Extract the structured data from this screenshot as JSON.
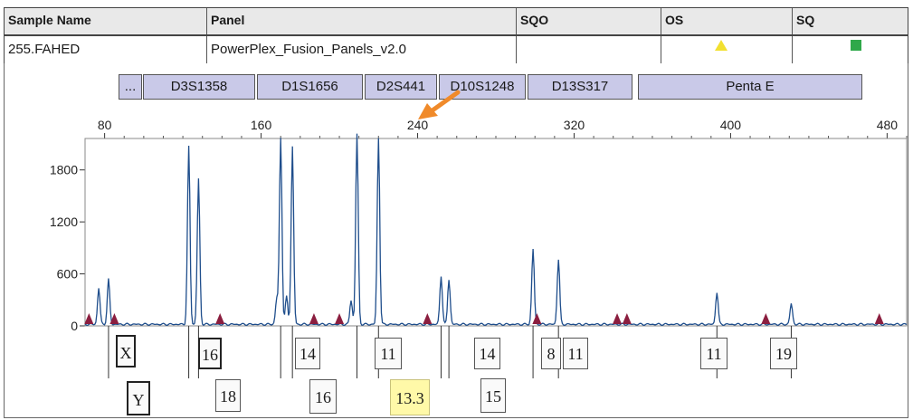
{
  "header": {
    "columns": [
      "Sample Name",
      "Panel",
      "SQO",
      "OS",
      "SQ"
    ],
    "sample_name": "255.FAHED",
    "panel": "PowerPlex_Fusion_Panels_v2.0",
    "os_icon": "yellow-triangle-icon",
    "sq_icon": "green-square-icon",
    "os_color": "#f2e030",
    "sq_color": "#2fa84a"
  },
  "markers": [
    {
      "label": "...",
      "icon": "ellipsis"
    },
    {
      "label": "D3S1358"
    },
    {
      "label": "D1S1656"
    },
    {
      "label": "D2S441"
    },
    {
      "label": "D10S1248"
    },
    {
      "label": "D13S317"
    },
    {
      "label": "Penta E"
    }
  ],
  "annotation": {
    "icon": "orange-arrow-icon",
    "color": "#f08a2a"
  },
  "chart_data": {
    "type": "line",
    "x_ticks": [
      "80",
      "160",
      "240",
      "320",
      "400",
      "480"
    ],
    "y_ticks": [
      "0",
      "600",
      "1200",
      "1800"
    ],
    "xlim": [
      70,
      490
    ],
    "ylim": [
      0,
      2100
    ],
    "grid": false,
    "series_color": "#1f4e8c",
    "peaks": [
      {
        "x": 77,
        "y": 420
      },
      {
        "x": 82,
        "y": 520
      },
      {
        "x": 123,
        "y": 2050
      },
      {
        "x": 128,
        "y": 1680
      },
      {
        "x": 168,
        "y": 300
      },
      {
        "x": 170,
        "y": 2150
      },
      {
        "x": 173,
        "y": 320
      },
      {
        "x": 176,
        "y": 2050
      },
      {
        "x": 206,
        "y": 280
      },
      {
        "x": 209,
        "y": 2200
      },
      {
        "x": 220,
        "y": 2150
      },
      {
        "x": 252,
        "y": 560
      },
      {
        "x": 256,
        "y": 520
      },
      {
        "x": 299,
        "y": 870
      },
      {
        "x": 312,
        "y": 750
      },
      {
        "x": 393,
        "y": 370
      },
      {
        "x": 431,
        "y": 240
      }
    ],
    "size_standard_x": [
      72,
      85,
      139,
      187,
      200,
      245,
      301,
      342,
      347,
      418,
      476
    ],
    "size_standard_color": "#8b1e3f"
  },
  "alleles": {
    "row1": [
      "X",
      "16",
      "14",
      "11",
      "14",
      "8",
      "11",
      "11",
      "19"
    ],
    "row2": [
      "Y",
      "18",
      "16",
      "13.3",
      "15"
    ]
  }
}
